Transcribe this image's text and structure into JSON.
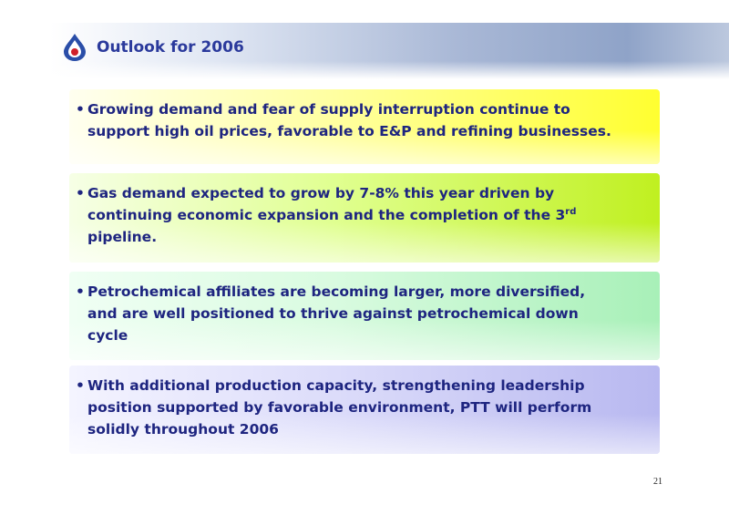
{
  "header": {
    "title": "Outlook for 2006"
  },
  "bullets": [
    {
      "lines": [
        "Growing demand and fear of supply interruption continue to",
        "support high oil prices, favorable to E&P and refining businesses."
      ]
    },
    {
      "lines": [
        "Gas demand expected to grow by 7-8%  this year driven by",
        "continuing economic expansion and the completion of the 3",
        "pipeline."
      ],
      "sup": "rd"
    },
    {
      "lines": [
        "Petrochemical affiliates are becoming larger, more diversified,",
        "and are well positioned to thrive against petrochemical down",
        "cycle"
      ]
    },
    {
      "lines": [
        "With additional production capacity, strengthening leadership",
        "position supported by favorable environment, PTT will perform",
        "solidly throughout 2006"
      ]
    }
  ],
  "page_number": "21"
}
